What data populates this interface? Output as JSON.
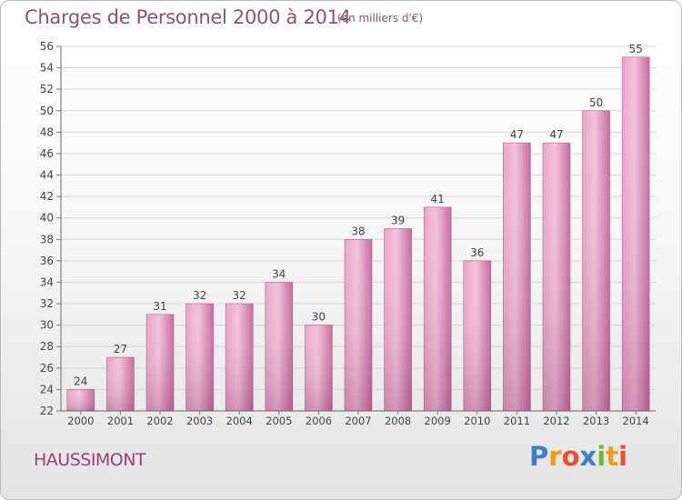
{
  "title": "Charges de Personnel 2000 à 2014",
  "subtitle": "(en milliers d'€)",
  "place": "HAUSSIMONT",
  "brand": {
    "letters": [
      "P",
      "r",
      "o",
      "x",
      "i",
      "t",
      "i"
    ],
    "colors": [
      "#3a7fc8",
      "#f29a1f",
      "#e8502d",
      "#3a7fc8",
      "#6fbb2e",
      "#f29a1f",
      "#e8502d"
    ]
  },
  "colors": {
    "bar": "#c9739f",
    "bar_light": "#f0b6d6",
    "text": "#8a5370",
    "grid": "#d6d6d6"
  },
  "chart_data": {
    "type": "bar",
    "categories": [
      "2000",
      "2001",
      "2002",
      "2003",
      "2004",
      "2005",
      "2006",
      "2007",
      "2008",
      "2009",
      "2010",
      "2011",
      "2012",
      "2013",
      "2014"
    ],
    "values": [
      24,
      27,
      31,
      32,
      32,
      34,
      30,
      38,
      39,
      41,
      36,
      47,
      47,
      50,
      55
    ],
    "ylim": [
      22,
      56
    ],
    "yticks": [
      22,
      24,
      26,
      28,
      30,
      32,
      34,
      36,
      38,
      40,
      42,
      44,
      46,
      48,
      50,
      52,
      54,
      56
    ],
    "grid": true,
    "data_labels": true
  }
}
